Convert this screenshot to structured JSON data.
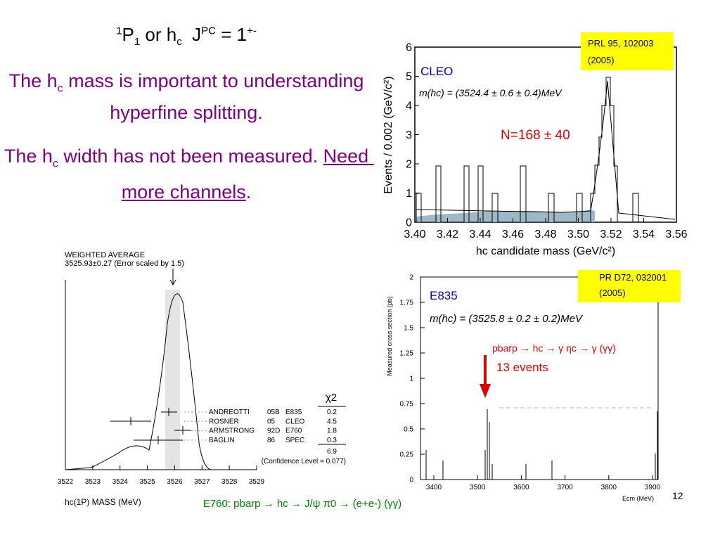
{
  "title": [
    "1",
    "P",
    "1",
    " or h",
    "c",
    "  J",
    "PC",
    " = 1",
    "+-"
  ],
  "text1": [
    "The h",
    "c",
    " mass is important to understanding hyperfine splitting."
  ],
  "text2": [
    "The h",
    "c",
    " width has not been measured. ",
    "Need more channels",
    "."
  ],
  "cleo": {
    "ref": [
      "PRL 95, 102003",
      "(2005)"
    ],
    "label": "CLEO",
    "formula": "m(hc) = (3524.4 ± 0.6 ± 0.4)MeV",
    "count": "N=168 ± 40",
    "ylabel": "Events / 0.002 (GeV/c²)",
    "xlabel": "hc candidate mass (GeV/c²)",
    "xticks": [
      {
        "value": 3.4,
        "label": "3.40"
      },
      {
        "value": 3.42,
        "label": "3.42"
      },
      {
        "value": 3.44,
        "label": "3.44"
      },
      {
        "value": 3.46,
        "label": "3.46"
      },
      {
        "value": 3.48,
        "label": "3.48"
      },
      {
        "value": 3.5,
        "label": "3.50"
      },
      {
        "value": 3.52,
        "label": "3.52"
      },
      {
        "value": 3.54,
        "label": "3.54"
      },
      {
        "value": 3.56,
        "label": "3.56"
      }
    ],
    "yticks": [
      0,
      1,
      2,
      3,
      4,
      5,
      6
    ]
  },
  "pdg": {
    "heading": [
      "WEIGHTED AVERAGE",
      "3525.93±0.27 (Error scaled by 1.5)"
    ],
    "chi2": "χ2",
    "rows": [
      [
        "ANDREOTTI",
        "05B",
        "E835",
        "0.2"
      ],
      [
        "ROSNER",
        "05",
        "CLEO",
        "4.5"
      ],
      [
        "ARMSTRONG",
        "92D",
        "E760",
        "1.8"
      ],
      [
        "BAGLIN",
        "86",
        "SPEC",
        "0.3"
      ]
    ],
    "total": "6.9",
    "cl": "(Confidence Level = 0.077)",
    "xlabel": "hc(1P) MASS (MeV)",
    "xticks": [
      3522,
      3523,
      3524,
      3525,
      3526,
      3527,
      3528,
      3529
    ]
  },
  "e835": {
    "ref": [
      "PR D72, 032001",
      "(2005)"
    ],
    "label": "E835",
    "formula": "m(hc) = (3525.8 ± 0.2 ± 0.2)MeV",
    "channel": "pbarp → hc → γ ηc → γ (γγ)",
    "events": "13 events",
    "ylabel": "Measured cross section (pb)",
    "xlabel": "Ecm (MeV)",
    "yticks": [
      0,
      0.25,
      0.5,
      0.75,
      1,
      1.25,
      1.5,
      1.75,
      2
    ],
    "xticks": [
      3400,
      3500,
      3600,
      3700,
      3800,
      3900
    ]
  },
  "footer": "E760: pbarp → hc → J/ψ π0 → (e+e-) (γγ)",
  "page": "12"
}
